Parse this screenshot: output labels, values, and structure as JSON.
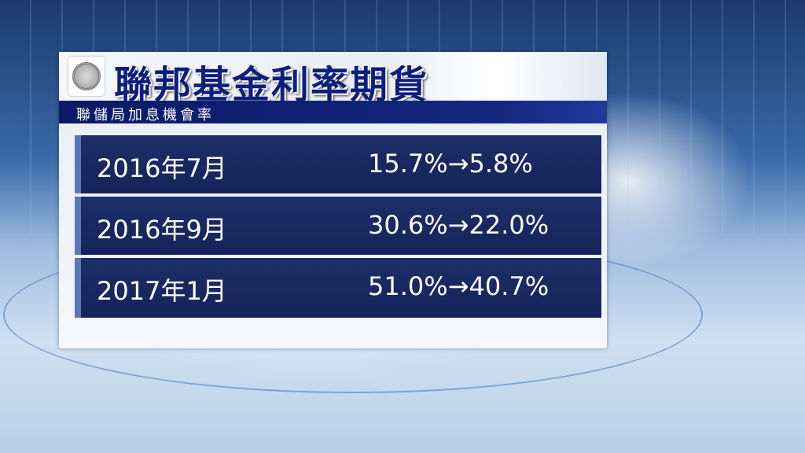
{
  "header": {
    "title": "聯邦基金利率期貨",
    "subtitle": "聯儲局加息機會率",
    "logo": "federal-reserve-seal"
  },
  "rows": [
    {
      "month": "2016年7月",
      "change": "15.7%→5.8%"
    },
    {
      "month": "2016年9月",
      "change": "30.6%→22.0%"
    },
    {
      "month": "2017年1月",
      "change": "51.0%→40.7%"
    }
  ],
  "colors": {
    "title": "#0d1f7a",
    "row_bg": "#1d2e66",
    "subbar": "#13277f"
  }
}
